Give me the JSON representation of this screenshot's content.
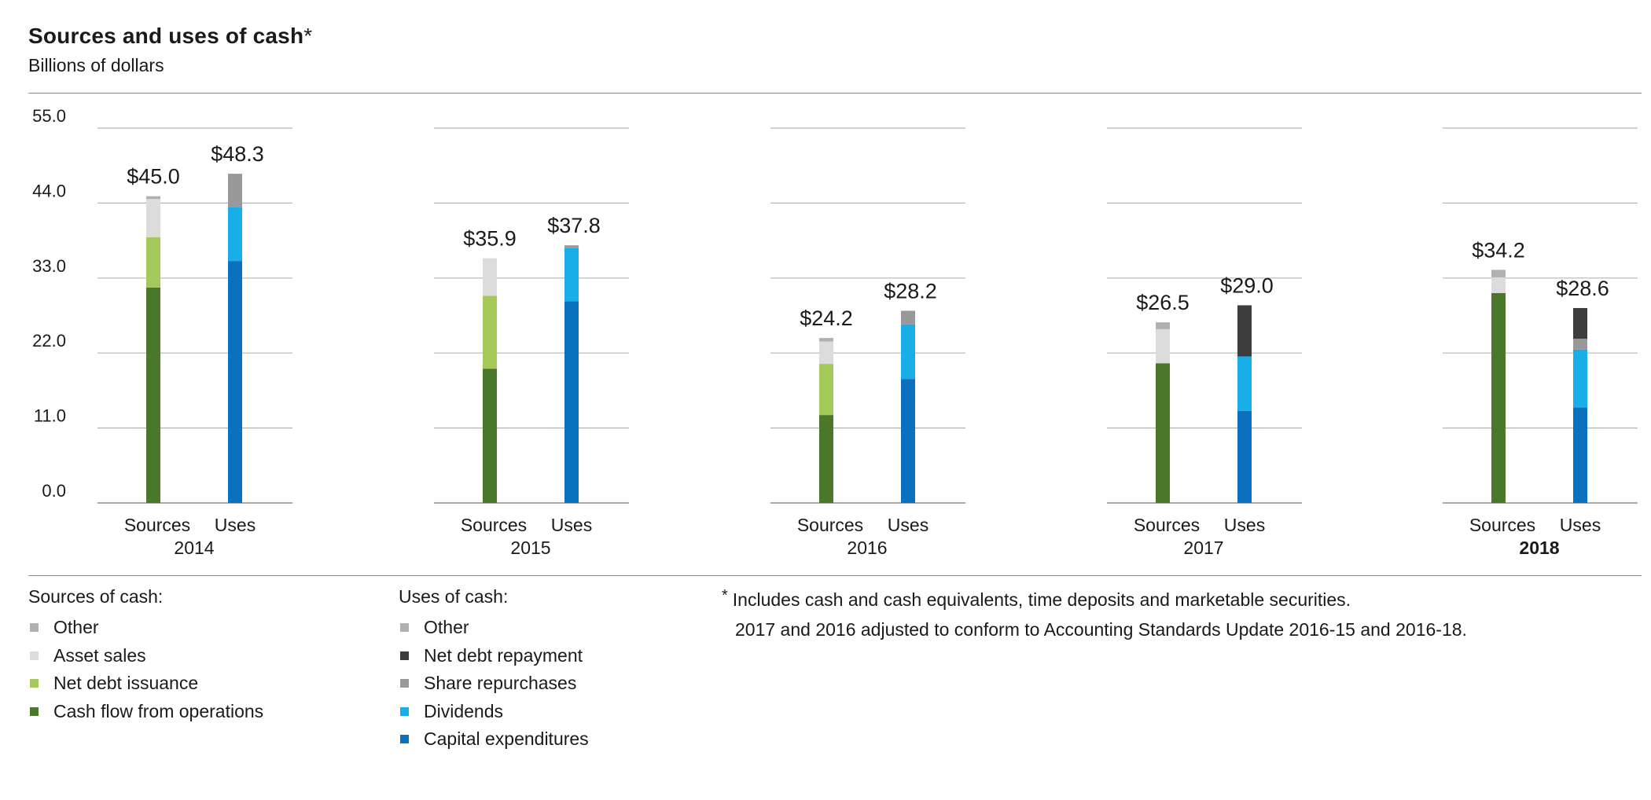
{
  "chart_data": {
    "type": "bar",
    "stacked": true,
    "title": "Sources and uses of cash",
    "title_mark": "*",
    "subtitle": "Billions of dollars",
    "y_ticks": [
      "55.0",
      "44.0",
      "33.0",
      "22.0",
      "11.0",
      "0.0"
    ],
    "ylim": [
      0,
      55
    ],
    "grid": true,
    "bar_categories": [
      "Sources",
      "Uses"
    ],
    "years": [
      {
        "label": "2014",
        "bold": false,
        "sources": {
          "total_label": "$45.0",
          "segments": {
            "cash_flow_from_operations": 31.6,
            "net_debt_issuance": 7.4,
            "asset_sales": 5.6,
            "other": 0.4
          }
        },
        "uses": {
          "total_label": "$48.3",
          "segments": {
            "capital_expenditures": 35.5,
            "dividends": 7.9,
            "share_repurchases": 4.9,
            "net_debt_repayment": 0,
            "other": 0
          }
        }
      },
      {
        "label": "2015",
        "bold": false,
        "sources": {
          "total_label": "$35.9",
          "segments": {
            "cash_flow_from_operations": 19.7,
            "net_debt_issuance": 10.7,
            "asset_sales": 5.5,
            "other": 0
          }
        },
        "uses": {
          "total_label": "$37.8",
          "segments": {
            "capital_expenditures": 29.6,
            "dividends": 7.8,
            "share_repurchases": 0.4,
            "net_debt_repayment": 0,
            "other": 0
          }
        }
      },
      {
        "label": "2016",
        "bold": false,
        "sources": {
          "total_label": "$24.2",
          "segments": {
            "cash_flow_from_operations": 12.9,
            "net_debt_issuance": 7.5,
            "asset_sales": 3.3,
            "other": 0.5
          }
        },
        "uses": {
          "total_label": "$28.2",
          "segments": {
            "capital_expenditures": 18.2,
            "dividends": 8.0,
            "share_repurchases": 2.0,
            "net_debt_repayment": 0,
            "other": 0
          }
        }
      },
      {
        "label": "2017",
        "bold": false,
        "sources": {
          "total_label": "$26.5",
          "segments": {
            "cash_flow_from_operations": 20.5,
            "net_debt_issuance": 0,
            "asset_sales": 5.0,
            "other": 1.0
          }
        },
        "uses": {
          "total_label": "$29.0",
          "segments": {
            "capital_expenditures": 13.5,
            "dividends": 8.0,
            "share_repurchases": 0,
            "net_debt_repayment": 7.5,
            "other": 0
          }
        }
      },
      {
        "label": "2018",
        "bold": true,
        "sources": {
          "total_label": "$34.2",
          "segments": {
            "cash_flow_from_operations": 30.8,
            "net_debt_issuance": 0,
            "asset_sales": 2.3,
            "other": 1.1
          }
        },
        "uses": {
          "total_label": "$28.6",
          "segments": {
            "capital_expenditures": 14.0,
            "dividends": 8.5,
            "share_repurchases": 1.6,
            "net_debt_repayment": 4.5,
            "other": 0
          }
        }
      }
    ],
    "colors": {
      "cash_flow_from_operations": "#4a7729",
      "net_debt_issuance": "#a4c95a",
      "asset_sales": "#dcdcdc",
      "sources_other": "#b0b0b0",
      "capital_expenditures": "#0b70bd",
      "dividends": "#1aaee8",
      "share_repurchases": "#999999",
      "net_debt_repayment": "#3d3d3d",
      "uses_other": "#b0b0b0"
    }
  },
  "legend": {
    "sources_heading": "Sources of cash:",
    "sources_items": [
      {
        "label": "Other",
        "color": "#b0b0b0"
      },
      {
        "label": "Asset sales",
        "color": "#dcdcdc"
      },
      {
        "label": "Net debt issuance",
        "color": "#a4c95a"
      },
      {
        "label": "Cash flow from operations",
        "color": "#4a7729"
      }
    ],
    "uses_heading": "Uses of cash:",
    "uses_items": [
      {
        "label": "Other",
        "color": "#b0b0b0"
      },
      {
        "label": "Net debt repayment",
        "color": "#3d3d3d"
      },
      {
        "label": "Share repurchases",
        "color": "#999999"
      },
      {
        "label": "Dividends",
        "color": "#1aaee8"
      },
      {
        "label": "Capital expenditures",
        "color": "#0b70bd"
      }
    ]
  },
  "footnote": {
    "mark": "*",
    "line1": "Includes cash and cash equivalents, time deposits and marketable securities.",
    "line2": "2017 and 2016 adjusted to conform to Accounting Standards Update 2016-15 and 2016-18."
  }
}
